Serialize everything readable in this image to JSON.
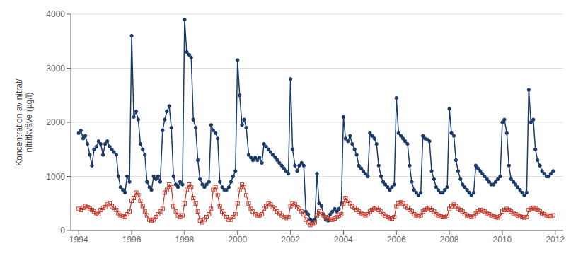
{
  "chart_data": {
    "type": "line",
    "ylabel": "Koncentration av nitrat/\nnitritkväve (µg/l)",
    "xlim": [
      1993.7,
      2012.3
    ],
    "xticks": [
      1994,
      1996,
      1998,
      2000,
      2002,
      2004,
      2006,
      2008,
      2010,
      2012
    ],
    "ylim": [
      0,
      4000
    ],
    "yticks": [
      0,
      1000,
      2000,
      3000,
      4000
    ],
    "grid": true,
    "x": [
      1994.0,
      1994.08,
      1994.17,
      1994.25,
      1994.33,
      1994.42,
      1994.5,
      1994.58,
      1994.67,
      1994.75,
      1994.83,
      1994.92,
      1995.0,
      1995.08,
      1995.17,
      1995.25,
      1995.33,
      1995.42,
      1995.5,
      1995.58,
      1995.67,
      1995.75,
      1995.83,
      1995.92,
      1996.0,
      1996.08,
      1996.17,
      1996.25,
      1996.33,
      1996.42,
      1996.5,
      1996.58,
      1996.67,
      1996.75,
      1996.83,
      1996.92,
      1997.0,
      1997.08,
      1997.17,
      1997.25,
      1997.33,
      1997.42,
      1997.5,
      1997.58,
      1997.67,
      1997.75,
      1997.83,
      1997.92,
      1998.0,
      1998.08,
      1998.17,
      1998.25,
      1998.33,
      1998.42,
      1998.5,
      1998.58,
      1998.67,
      1998.75,
      1998.83,
      1998.92,
      1999.0,
      1999.08,
      1999.17,
      1999.25,
      1999.33,
      1999.42,
      1999.5,
      1999.58,
      1999.67,
      1999.75,
      1999.83,
      1999.92,
      2000.0,
      2000.08,
      2000.17,
      2000.25,
      2000.33,
      2000.42,
      2000.5,
      2000.58,
      2000.67,
      2000.75,
      2000.83,
      2000.92,
      2001.0,
      2001.08,
      2001.17,
      2001.25,
      2001.33,
      2001.42,
      2001.5,
      2001.58,
      2001.67,
      2001.75,
      2001.83,
      2001.92,
      2002.0,
      2002.08,
      2002.17,
      2002.25,
      2002.33,
      2002.42,
      2002.5,
      2002.58,
      2002.67,
      2002.75,
      2002.83,
      2002.92,
      2003.0,
      2003.08,
      2003.17,
      2003.25,
      2003.33,
      2003.42,
      2003.5,
      2003.58,
      2003.67,
      2003.75,
      2003.83,
      2003.92,
      2004.0,
      2004.08,
      2004.17,
      2004.25,
      2004.33,
      2004.42,
      2004.5,
      2004.58,
      2004.67,
      2004.75,
      2004.83,
      2004.92,
      2005.0,
      2005.08,
      2005.17,
      2005.25,
      2005.33,
      2005.42,
      2005.5,
      2005.58,
      2005.67,
      2005.75,
      2005.83,
      2005.92,
      2006.0,
      2006.08,
      2006.17,
      2006.25,
      2006.33,
      2006.42,
      2006.5,
      2006.58,
      2006.67,
      2006.75,
      2006.83,
      2006.92,
      2007.0,
      2007.08,
      2007.17,
      2007.25,
      2007.33,
      2007.42,
      2007.5,
      2007.58,
      2007.67,
      2007.75,
      2007.83,
      2007.92,
      2008.0,
      2008.08,
      2008.17,
      2008.25,
      2008.33,
      2008.42,
      2008.5,
      2008.58,
      2008.67,
      2008.75,
      2008.83,
      2008.92,
      2009.0,
      2009.08,
      2009.17,
      2009.25,
      2009.33,
      2009.42,
      2009.5,
      2009.58,
      2009.67,
      2009.75,
      2009.83,
      2009.92,
      2010.0,
      2010.08,
      2010.17,
      2010.25,
      2010.33,
      2010.42,
      2010.5,
      2010.58,
      2010.67,
      2010.75,
      2010.83,
      2010.92,
      2011.0,
      2011.08,
      2011.17,
      2011.25,
      2011.33,
      2011.42,
      2011.5,
      2011.58,
      2011.67,
      2011.75,
      2011.83,
      2011.92
    ],
    "series": [
      {
        "color": "#1a3a6b",
        "marker": "circle",
        "line_style": "solid",
        "values": [
          1800,
          1850,
          1700,
          1750,
          1600,
          1400,
          1200,
          1500,
          1550,
          1650,
          1600,
          1400,
          1600,
          1650,
          1550,
          1500,
          1450,
          1400,
          1000,
          800,
          750,
          700,
          1000,
          900,
          3600,
          2100,
          2200,
          2050,
          1600,
          1500,
          1400,
          900,
          800,
          750,
          1000,
          950,
          1000,
          900,
          1850,
          2050,
          2200,
          2300,
          1900,
          1000,
          850,
          800,
          900,
          850,
          3900,
          3300,
          3250,
          3200,
          2050,
          1900,
          1300,
          950,
          850,
          800,
          850,
          900,
          1950,
          1850,
          1800,
          1700,
          900,
          800,
          750,
          750,
          800,
          900,
          1000,
          1100,
          3150,
          2500,
          1950,
          2050,
          1900,
          1400,
          1350,
          1300,
          1350,
          1300,
          1350,
          1250,
          1600,
          1550,
          1500,
          1450,
          1400,
          1350,
          1300,
          1250,
          1200,
          1150,
          1100,
          1050,
          2800,
          1500,
          1200,
          1100,
          1200,
          1250,
          1200,
          350,
          300,
          200,
          180,
          200,
          1050,
          500,
          450,
          300,
          200,
          180,
          300,
          350,
          400,
          350,
          400,
          500,
          2100,
          1700,
          1650,
          1750,
          1600,
          1500,
          1400,
          1200,
          1150,
          1100,
          1050,
          1000,
          1800,
          1750,
          1700,
          1600,
          1200,
          1000,
          900,
          850,
          800,
          750,
          800,
          850,
          2450,
          1800,
          1750,
          1700,
          1650,
          1600,
          1200,
          900,
          750,
          700,
          650,
          700,
          1750,
          1700,
          1680,
          1650,
          1100,
          950,
          800,
          750,
          700,
          700,
          750,
          800,
          2250,
          1800,
          1750,
          1300,
          1100,
          950,
          850,
          800,
          750,
          700,
          650,
          700,
          1200,
          1150,
          1100,
          1050,
          1000,
          950,
          900,
          850,
          850,
          900,
          950,
          1000,
          2000,
          2050,
          1800,
          1200,
          950,
          900,
          850,
          800,
          750,
          700,
          650,
          700,
          2600,
          2000,
          2050,
          1500,
          1300,
          1200,
          1100,
          1050,
          1000,
          1000,
          1050,
          1100
        ]
      },
      {
        "color": "#c0392b",
        "marker": "square",
        "line_style": "solid",
        "values": [
          400,
          380,
          420,
          450,
          430,
          400,
          380,
          350,
          320,
          300,
          380,
          420,
          430,
          480,
          500,
          450,
          420,
          380,
          320,
          280,
          260,
          250,
          300,
          350,
          550,
          600,
          700,
          650,
          550,
          450,
          350,
          280,
          200,
          180,
          200,
          250,
          300,
          350,
          400,
          700,
          750,
          850,
          800,
          450,
          350,
          280,
          250,
          280,
          500,
          750,
          850,
          800,
          600,
          500,
          350,
          180,
          150,
          200,
          250,
          300,
          400,
          750,
          800,
          650,
          450,
          350,
          300,
          250,
          200,
          200,
          250,
          300,
          500,
          750,
          850,
          800,
          650,
          500,
          400,
          350,
          300,
          280,
          280,
          300,
          400,
          450,
          500,
          480,
          430,
          400,
          350,
          320,
          280,
          250,
          230,
          250,
          450,
          500,
          480,
          430,
          400,
          350,
          300,
          200,
          150,
          100,
          120,
          150,
          280,
          350,
          300,
          280,
          250,
          220,
          200,
          200,
          220,
          250,
          280,
          300,
          500,
          600,
          550,
          500,
          450,
          420,
          380,
          350,
          320,
          300,
          280,
          300,
          350,
          380,
          400,
          420,
          380,
          350,
          300,
          270,
          250,
          230,
          220,
          250,
          450,
          500,
          520,
          500,
          450,
          420,
          380,
          350,
          300,
          280,
          260,
          280,
          350,
          380,
          400,
          420,
          380,
          350,
          300,
          280,
          260,
          250,
          250,
          270,
          400,
          450,
          480,
          450,
          400,
          380,
          350,
          300,
          280,
          260,
          250,
          260,
          320,
          350,
          380,
          370,
          350,
          320,
          300,
          280,
          260,
          250,
          240,
          260,
          350,
          380,
          400,
          380,
          350,
          320,
          300,
          280,
          260,
          250,
          240,
          250,
          380,
          400,
          420,
          400,
          380,
          350,
          320,
          300,
          280,
          270,
          260,
          280
        ]
      }
    ]
  }
}
